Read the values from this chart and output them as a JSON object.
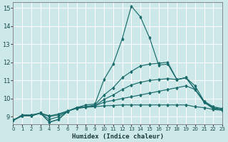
{
  "xlabel": "Humidex (Indice chaleur)",
  "bg_color": "#cce8e8",
  "grid_color": "#ffffff",
  "line_color": "#1a6b6b",
  "xlim": [
    0,
    23
  ],
  "ylim": [
    8.6,
    15.3
  ],
  "xticks": [
    0,
    1,
    2,
    3,
    4,
    5,
    6,
    7,
    8,
    9,
    10,
    11,
    12,
    13,
    14,
    15,
    16,
    17,
    18,
    19,
    20,
    21,
    22,
    23
  ],
  "yticks": [
    9,
    10,
    11,
    12,
    13,
    14,
    15
  ],
  "lines": [
    [
      8.8,
      9.1,
      9.1,
      9.2,
      8.7,
      8.85,
      9.3,
      9.5,
      9.65,
      9.7,
      11.05,
      11.9,
      13.3,
      15.1,
      14.5,
      13.35,
      11.85,
      11.9,
      11.05,
      11.15,
      10.7,
      9.85,
      9.55,
      9.45
    ],
    [
      8.8,
      9.05,
      9.05,
      9.2,
      8.7,
      8.85,
      9.3,
      9.5,
      9.55,
      9.65,
      10.2,
      10.6,
      11.15,
      11.5,
      11.8,
      11.9,
      11.95,
      12.0,
      11.05,
      11.15,
      10.5,
      9.85,
      9.5,
      9.4
    ],
    [
      8.8,
      9.05,
      9.05,
      9.2,
      8.85,
      9.0,
      9.3,
      9.5,
      9.55,
      9.6,
      9.95,
      10.2,
      10.5,
      10.75,
      10.9,
      11.0,
      11.05,
      11.1,
      11.05,
      11.15,
      10.5,
      9.8,
      9.45,
      9.4
    ],
    [
      8.8,
      9.05,
      9.05,
      9.2,
      9.0,
      9.1,
      9.3,
      9.5,
      9.55,
      9.6,
      9.8,
      9.9,
      10.0,
      10.1,
      10.2,
      10.3,
      10.4,
      10.5,
      10.6,
      10.7,
      10.5,
      9.8,
      9.45,
      9.4
    ],
    [
      8.8,
      9.05,
      9.05,
      9.2,
      9.05,
      9.15,
      9.32,
      9.45,
      9.52,
      9.55,
      9.6,
      9.62,
      9.65,
      9.65,
      9.65,
      9.65,
      9.65,
      9.65,
      9.65,
      9.65,
      9.55,
      9.5,
      9.4,
      9.35
    ]
  ]
}
